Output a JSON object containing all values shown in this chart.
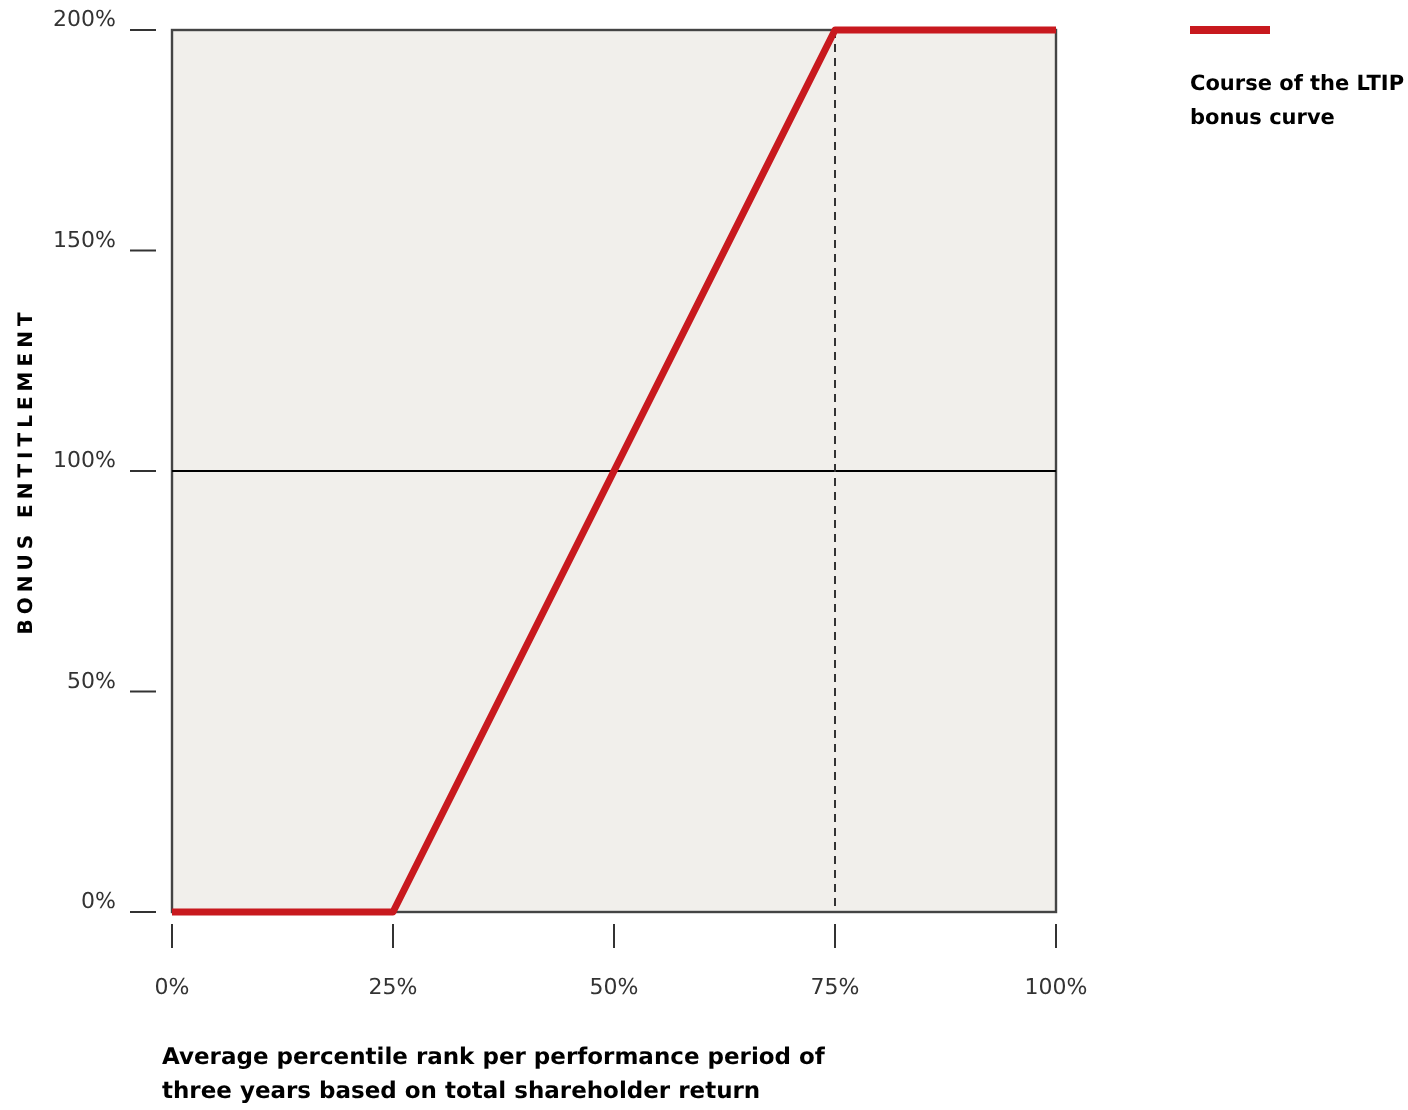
{
  "chart_data": {
    "type": "line",
    "xlabel": "Average percentile rank per performance period of three years based on total shareholder return",
    "ylabel": "BONUS ENTITLEMENT",
    "x": [
      0,
      25,
      75,
      100
    ],
    "series": [
      {
        "name": "Course of the LTIP bonus curve",
        "color": "#c8191e",
        "values": [
          0,
          0,
          200,
          200
        ]
      }
    ],
    "xlim": [
      0,
      100
    ],
    "ylim": [
      0,
      200
    ],
    "xticks": [
      {
        "value": 0,
        "label": "0%"
      },
      {
        "value": 25,
        "label": "25%"
      },
      {
        "value": 50,
        "label": "50%"
      },
      {
        "value": 75,
        "label": "75%"
      },
      {
        "value": 100,
        "label": "100%"
      }
    ],
    "yticks": [
      {
        "value": 0,
        "label": "0%"
      },
      {
        "value": 50,
        "label": "50%"
      },
      {
        "value": 100,
        "label": "100%"
      },
      {
        "value": 150,
        "label": "150%"
      },
      {
        "value": 200,
        "label": "200%"
      }
    ],
    "ref_lines": [
      {
        "axis": "y",
        "value": 100,
        "label": null,
        "color": "#000000",
        "line_style": "solid"
      },
      {
        "axis": "x",
        "value": 75,
        "label": null,
        "color": "#333333",
        "line_style": "dashed"
      }
    ],
    "grid": false,
    "legend": "top right",
    "marker": "none",
    "line_style": "solid"
  }
}
